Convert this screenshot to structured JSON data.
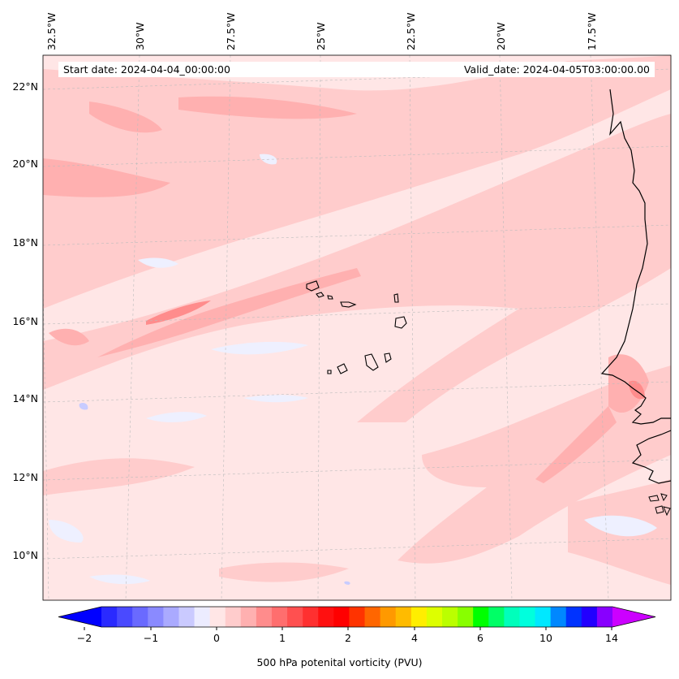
{
  "map": {
    "start_date_label": "Start date: 2024-04-04_00:00:00",
    "valid_date_label": "Valid_date: 2024-04-05T03:00:00.00",
    "lon_labels": [
      "32.5°W",
      "30°W",
      "27.5°W",
      "25°W",
      "22.5°W",
      "20°W",
      "17.5°W"
    ],
    "lat_labels": [
      "22°N",
      "20°N",
      "18°N",
      "16°N",
      "14°N",
      "12°N",
      "10°N"
    ],
    "background_color": "#ffe6e6",
    "colors": {
      "light_pink": "#ffcccc",
      "mid_pink": "#ffb0b0",
      "dark_pink": "#ff8c8c",
      "pale_blue": "#eef0ff",
      "blue": "#c8ccff",
      "coast": "#000000"
    }
  },
  "colorbar": {
    "title": "500 hPa potenital vorticity (PVU)",
    "tick_labels": [
      "−2",
      "−1",
      "0",
      "1",
      "2",
      "4",
      "6",
      "10",
      "14"
    ],
    "colors": [
      "#0000ff",
      "#2a2aff",
      "#4a4aff",
      "#6a6aff",
      "#8a8aff",
      "#aaaaff",
      "#cacaff",
      "#ececff",
      "#ffe6e6",
      "#ffcccc",
      "#ffb0b0",
      "#ff8c8c",
      "#ff6e6e",
      "#ff5050",
      "#ff3030",
      "#ff1010",
      "#ff0000",
      "#ff3300",
      "#ff6600",
      "#ff9900",
      "#ffbb00",
      "#ffee00",
      "#ddff00",
      "#bbff00",
      "#88ff00",
      "#00ff00",
      "#00ff66",
      "#00ffbb",
      "#00ffdd",
      "#00e8ff",
      "#0088ff",
      "#0033ff",
      "#2200ff",
      "#8800ff",
      "#cc00ff"
    ]
  }
}
